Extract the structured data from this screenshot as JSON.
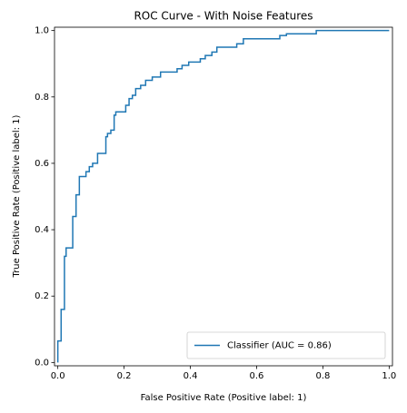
{
  "chart_data": {
    "type": "line",
    "title": "ROC Curve - With Noise Features",
    "xlabel": "False Positive Rate (Positive label: 1)",
    "ylabel": "True Positive Rate (Positive label: 1)",
    "x": [
      0,
      0,
      0.01,
      0.01,
      0.02,
      0.02,
      0.025,
      0.025,
      0.045,
      0.045,
      0.055,
      0.055,
      0.065,
      0.065,
      0.085,
      0.085,
      0.095,
      0.095,
      0.105,
      0.105,
      0.12,
      0.12,
      0.145,
      0.145,
      0.15,
      0.15,
      0.16,
      0.16,
      0.17,
      0.17,
      0.175,
      0.175,
      0.205,
      0.205,
      0.215,
      0.215,
      0.225,
      0.225,
      0.235,
      0.235,
      0.25,
      0.25,
      0.265,
      0.265,
      0.285,
      0.285,
      0.31,
      0.31,
      0.36,
      0.36,
      0.375,
      0.375,
      0.395,
      0.395,
      0.43,
      0.43,
      0.445,
      0.445,
      0.465,
      0.465,
      0.48,
      0.48,
      0.54,
      0.54,
      0.56,
      0.56,
      0.67,
      0.67,
      0.69,
      0.69,
      0.78,
      0.78,
      1.0
    ],
    "series": [
      {
        "name": "Classifier (AUC = 0.86)",
        "color": "#1f77b4",
        "values": [
          0,
          0.065,
          0.065,
          0.16,
          0.16,
          0.32,
          0.32,
          0.345,
          0.345,
          0.44,
          0.44,
          0.505,
          0.505,
          0.56,
          0.56,
          0.575,
          0.575,
          0.59,
          0.59,
          0.6,
          0.6,
          0.63,
          0.63,
          0.68,
          0.68,
          0.69,
          0.69,
          0.7,
          0.7,
          0.745,
          0.745,
          0.755,
          0.755,
          0.775,
          0.775,
          0.795,
          0.795,
          0.805,
          0.805,
          0.825,
          0.825,
          0.835,
          0.835,
          0.85,
          0.85,
          0.86,
          0.86,
          0.875,
          0.875,
          0.885,
          0.885,
          0.895,
          0.895,
          0.905,
          0.905,
          0.915,
          0.915,
          0.925,
          0.925,
          0.935,
          0.935,
          0.95,
          0.95,
          0.96,
          0.96,
          0.975,
          0.975,
          0.985,
          0.985,
          0.99,
          0.99,
          1.0,
          1.0
        ]
      }
    ],
    "xlim": [
      -0.01,
      1.01
    ],
    "ylim": [
      -0.01,
      1.01
    ],
    "xticks": [
      {
        "value": 0,
        "label": "0.0"
      },
      0.2,
      0.4,
      0.6,
      0.8,
      {
        "value": 1,
        "label": "1.0"
      }
    ],
    "yticks": [
      {
        "value": 0,
        "label": "0.0"
      },
      0.2,
      0.4,
      0.6,
      0.8,
      {
        "value": 1,
        "label": "1.0"
      }
    ],
    "grid": false,
    "legend": "lower right"
  }
}
